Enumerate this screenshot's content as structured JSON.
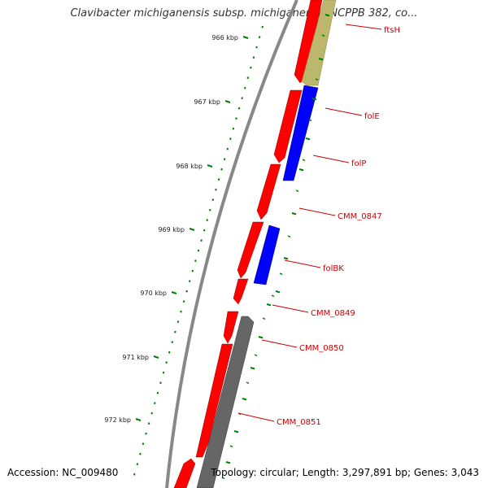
{
  "title": "Clavibacter michiganensis subsp. michiganensis NCPPB 382, co...",
  "footer": {
    "accession": "Accession: NC_009480",
    "summary": "Topology: circular; Length: 3,297,891 bp; Genes: 3,043"
  },
  "ticks": [
    "966 kbp",
    "967 kbp",
    "968 kbp",
    "969 kbp",
    "970 kbp",
    "971 kbp",
    "972 kbp"
  ],
  "genes": [
    "ftsH",
    "folE",
    "folP",
    "CMM_0847",
    "folBK",
    "CMM_0849",
    "CMM_0850",
    "CMM_0851"
  ],
  "colors": {
    "forward_cds": "#ff0000",
    "reverse_cds_blue": "#0000ff",
    "reverse_cds_khaki": "#bdb76b",
    "reverse_cds_gray": "#666666",
    "backbone": "#888888",
    "tick": "#008000",
    "label": "#cc0000"
  }
}
